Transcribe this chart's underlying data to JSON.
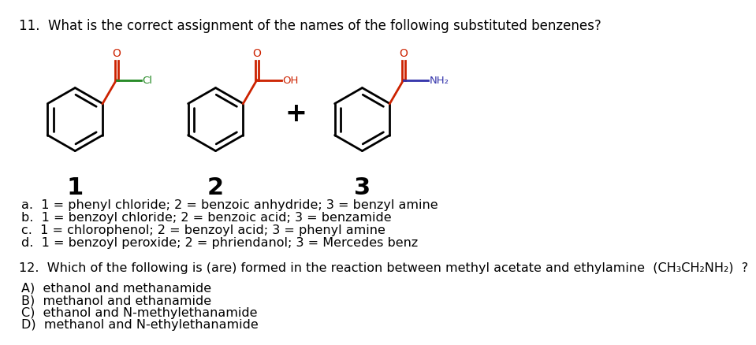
{
  "title_q11": "11.  What is the correct assignment of the names of the following substituted benzenes?",
  "answers_q11": [
    "a.  1 = phenyl chloride; 2 = benzoic anhydride; 3 = benzyl amine",
    "b.  1 = benzoyl chloride; 2 = benzoic acid; 3 = benzamide",
    "c.  1 = chlorophenol; 2 = benzoyl acid; 3 = phenyl amine",
    "d.  1 = benzoyl peroxide; 2 = phriendanol; 3 = Mercedes benz"
  ],
  "title_q12": "12.  Which of the following is (are) formed in the reaction between methyl acetate and ethylamine  (CH₃CH₂NH₂)  ?",
  "answers_q12": [
    "A)  ethanol and methanamide",
    "B)  methanol and ethanamide",
    "C)  ethanol and N-methylethanamide",
    "D)  methanol and N-ethylethanamide"
  ],
  "bg_color": "#ffffff",
  "text_color": "#000000",
  "red_color": "#cc2200",
  "green_color": "#228822",
  "blue_color": "#3333aa"
}
